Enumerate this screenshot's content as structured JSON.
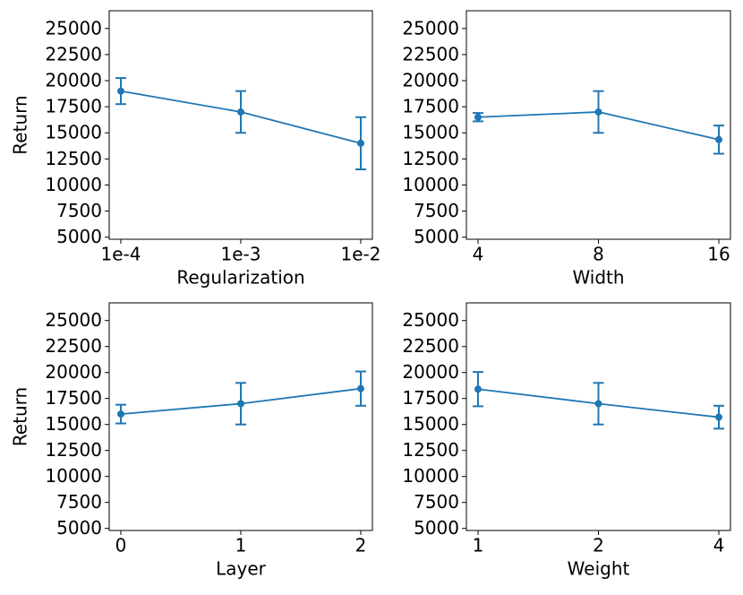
{
  "chart_data": [
    {
      "type": "line",
      "xlabel": "Regularization",
      "ylabel": "Return",
      "categories": [
        "1e-4",
        "1e-3",
        "1e-2"
      ],
      "values": [
        19000,
        17000,
        14000
      ],
      "errors": [
        1250,
        2000,
        2500
      ],
      "color": "#1f77b4",
      "ylim": [
        4800,
        26700
      ],
      "yticks": [
        5000,
        7500,
        10000,
        12500,
        15000,
        17500,
        20000,
        22500,
        25000
      ]
    },
    {
      "type": "line",
      "xlabel": "Width",
      "categories": [
        "4",
        "8",
        "16"
      ],
      "values": [
        16500,
        17000,
        14350
      ],
      "errors": [
        400,
        2000,
        1350
      ],
      "color": "#1f77b4",
      "ylim": [
        4800,
        26700
      ],
      "yticks": [
        5000,
        7500,
        10000,
        12500,
        15000,
        17500,
        20000,
        22500,
        25000
      ]
    },
    {
      "type": "line",
      "xlabel": "Layer",
      "ylabel": "Return",
      "categories": [
        "0",
        "1",
        "2"
      ],
      "values": [
        16000,
        17000,
        18450
      ],
      "errors": [
        900,
        2000,
        1650
      ],
      "color": "#1f77b4",
      "ylim": [
        4800,
        26700
      ],
      "yticks": [
        5000,
        7500,
        10000,
        12500,
        15000,
        17500,
        20000,
        22500,
        25000
      ]
    },
    {
      "type": "line",
      "xlabel": "Weight",
      "categories": [
        "1",
        "2",
        "4"
      ],
      "values": [
        18400,
        17000,
        15700
      ],
      "errors": [
        1650,
        2000,
        1100
      ],
      "color": "#1f77b4",
      "ylim": [
        4800,
        26700
      ],
      "yticks": [
        5000,
        7500,
        10000,
        12500,
        15000,
        17500,
        20000,
        22500,
        25000
      ]
    }
  ]
}
